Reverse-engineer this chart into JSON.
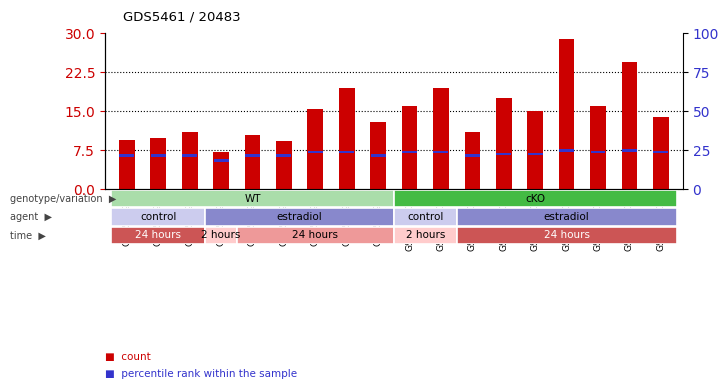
{
  "title": "GDS5461 / 20483",
  "samples": [
    "GSM568946",
    "GSM568947",
    "GSM568948",
    "GSM568949",
    "GSM568950",
    "GSM568951",
    "GSM568952",
    "GSM568953",
    "GSM568954",
    "GSM1301143",
    "GSM1301144",
    "GSM1301145",
    "GSM1301146",
    "GSM1301147",
    "GSM1301148",
    "GSM1301149",
    "GSM1301150",
    "GSM1301151"
  ],
  "count_values": [
    9.5,
    9.8,
    11.0,
    7.2,
    10.5,
    9.2,
    15.5,
    19.5,
    13.0,
    16.0,
    19.5,
    11.0,
    17.5,
    15.0,
    29.0,
    16.0,
    24.5,
    14.0
  ],
  "percentile_values": [
    6.5,
    6.5,
    6.5,
    5.5,
    6.5,
    6.5,
    7.2,
    7.2,
    6.5,
    7.2,
    7.2,
    6.5,
    6.8,
    6.8,
    7.5,
    7.2,
    7.5,
    7.2
  ],
  "bar_color": "#cc0000",
  "percentile_color": "#3333cc",
  "ylim_left": [
    0,
    30
  ],
  "ylim_right": [
    0,
    100
  ],
  "yticks_left": [
    0,
    7.5,
    15,
    22.5,
    30
  ],
  "yticks_right": [
    0,
    25,
    50,
    75,
    100
  ],
  "grid_values": [
    7.5,
    15,
    22.5
  ],
  "annotation_rows": [
    {
      "label": "genotype/variation",
      "segments": [
        {
          "text": "WT",
          "start": 0,
          "end": 9,
          "color": "#aaddaa",
          "text_color": "#000000"
        },
        {
          "text": "cKO",
          "start": 9,
          "end": 18,
          "color": "#44bb44",
          "text_color": "#000000"
        }
      ]
    },
    {
      "label": "agent",
      "segments": [
        {
          "text": "control",
          "start": 0,
          "end": 3,
          "color": "#ccccee",
          "text_color": "#000000"
        },
        {
          "text": "estradiol",
          "start": 3,
          "end": 9,
          "color": "#8888cc",
          "text_color": "#000000"
        },
        {
          "text": "control",
          "start": 9,
          "end": 11,
          "color": "#ccccee",
          "text_color": "#000000"
        },
        {
          "text": "estradiol",
          "start": 11,
          "end": 18,
          "color": "#8888cc",
          "text_color": "#000000"
        }
      ]
    },
    {
      "label": "time",
      "segments": [
        {
          "text": "24 hours",
          "start": 0,
          "end": 3,
          "color": "#cc5555",
          "text_color": "#ffffff"
        },
        {
          "text": "2 hours",
          "start": 3,
          "end": 4,
          "color": "#ffcccc",
          "text_color": "#000000"
        },
        {
          "text": "24 hours",
          "start": 4,
          "end": 9,
          "color": "#ee9999",
          "text_color": "#000000"
        },
        {
          "text": "2 hours",
          "start": 9,
          "end": 11,
          "color": "#ffcccc",
          "text_color": "#000000"
        },
        {
          "text": "24 hours",
          "start": 11,
          "end": 18,
          "color": "#cc5555",
          "text_color": "#ffffff"
        }
      ]
    }
  ],
  "bar_width": 0.5,
  "background_color": "#ffffff",
  "plot_bg_color": "#ffffff",
  "tick_label_color_left": "#cc0000",
  "tick_label_color_right": "#3333cc"
}
